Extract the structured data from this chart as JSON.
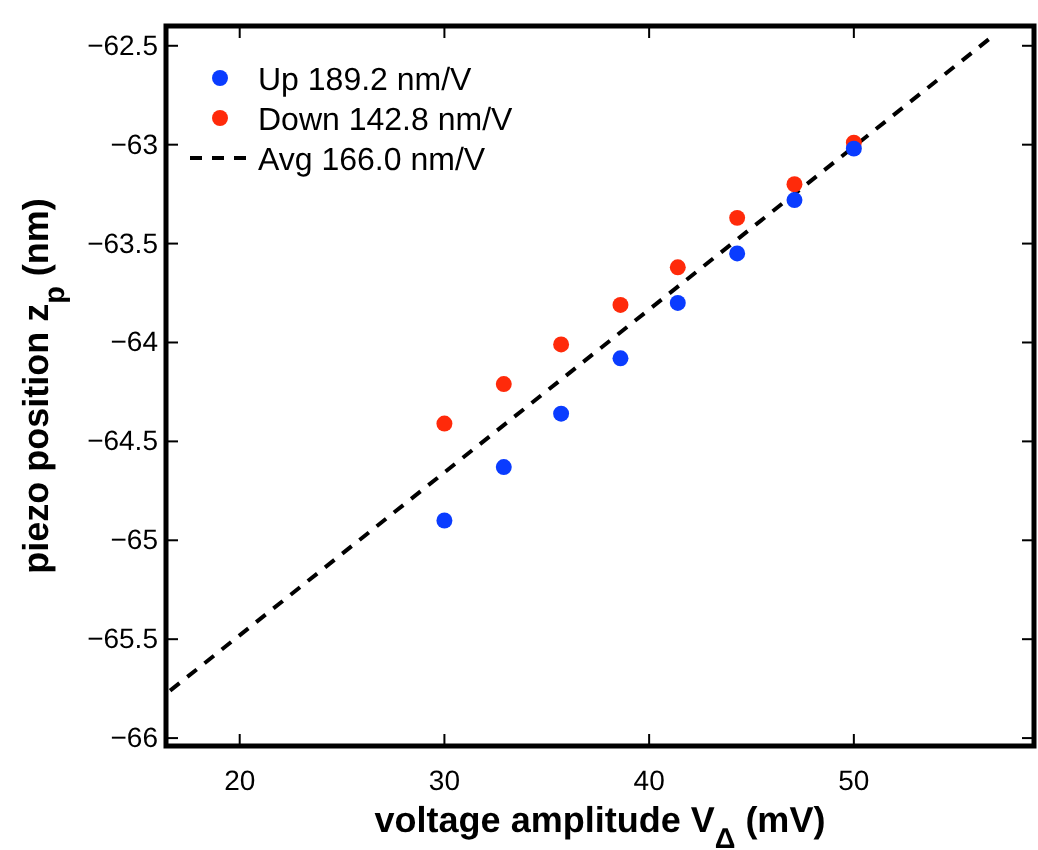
{
  "chart_data": {
    "type": "scatter",
    "xlabel": "voltage amplitude V$_{Δ}$ (mV)",
    "ylabel": "piezo position z$_{p}$ (nm)",
    "xlim": [
      16.4,
      58.8
    ],
    "ylim": [
      -66.04,
      -62.4
    ],
    "xticks": [
      20,
      30,
      40,
      50
    ],
    "yticks": [
      {
        "value": -66,
        "label": "−66"
      },
      {
        "value": -65.5,
        "label": "−65.5"
      },
      {
        "value": -65,
        "label": "−65"
      },
      {
        "value": -64.5,
        "label": "−64.5"
      },
      {
        "value": -64,
        "label": "−64"
      },
      {
        "value": -63.5,
        "label": "−63.5"
      },
      {
        "value": -63,
        "label": "−63"
      },
      {
        "value": -62.5,
        "label": "−62.5"
      }
    ],
    "grid": false,
    "legend": "top left",
    "marker": "circle",
    "series": [
      {
        "name": "Up 189.2 nm/V",
        "color": "#0a3cff",
        "x": [
          30,
          32.9,
          35.7,
          38.6,
          41.4,
          44.3,
          47.1,
          50
        ],
        "values": [
          -64.9,
          -64.63,
          -64.36,
          -64.08,
          -63.8,
          -63.55,
          -63.28,
          -63.02
        ]
      },
      {
        "name": "Down 142.8 nm/V",
        "color": "#ff2a0a",
        "x": [
          30,
          32.9,
          35.7,
          38.6,
          41.4,
          44.3,
          47.1,
          50
        ],
        "values": [
          -64.41,
          -64.21,
          -64.01,
          -63.81,
          -63.62,
          -63.37,
          -63.2,
          -62.99
        ]
      },
      {
        "name": "Avg 166.0 nm/V",
        "type": "line",
        "color": "#000000",
        "line_style": "dashed",
        "marker": "none",
        "x": [
          16.6,
          56.8
        ],
        "values": [
          -65.76,
          -62.45
        ]
      }
    ]
  }
}
